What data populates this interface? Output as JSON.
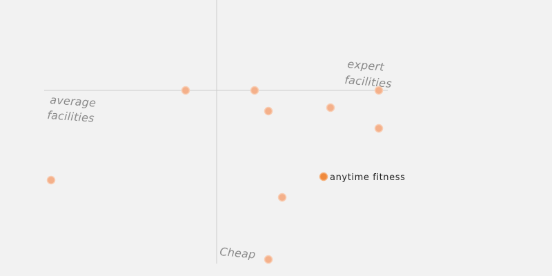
{
  "chart_data": {
    "type": "scatter",
    "title": "",
    "xlabel": "",
    "ylabel": "",
    "axes": {
      "vertical_top": "",
      "vertical_bottom": "Cheap",
      "horizontal_left": [
        "average",
        "facilities"
      ],
      "horizontal_right": [
        "expert",
        "facilities"
      ]
    },
    "xlim": [
      -24,
      25
    ],
    "ylim": [
      -25,
      13
    ],
    "grid": false,
    "legend": "none",
    "points": [
      {
        "x": -24,
        "y": -13,
        "label": "",
        "highlight": false
      },
      {
        "x": -4.5,
        "y": 0,
        "label": "",
        "highlight": false
      },
      {
        "x": 5.5,
        "y": 0,
        "label": "",
        "highlight": false
      },
      {
        "x": 7.5,
        "y": -3,
        "label": "",
        "highlight": false
      },
      {
        "x": 16.5,
        "y": -2.5,
        "label": "",
        "highlight": false
      },
      {
        "x": 23.5,
        "y": 0,
        "label": "",
        "highlight": false
      },
      {
        "x": 23.5,
        "y": -5.5,
        "label": "",
        "highlight": false
      },
      {
        "x": 15.5,
        "y": -12.5,
        "label": "anytime fitness",
        "highlight": true
      },
      {
        "x": 9.5,
        "y": -15.5,
        "label": "",
        "highlight": false
      },
      {
        "x": 7.5,
        "y": -24.5,
        "label": "",
        "highlight": false
      }
    ],
    "colors": {
      "point": "#f4b08a",
      "highlight": "#f08a3c",
      "axis": "#cccccc",
      "axis_label": "#8a8a8a",
      "background": "#f2f2f2"
    }
  }
}
